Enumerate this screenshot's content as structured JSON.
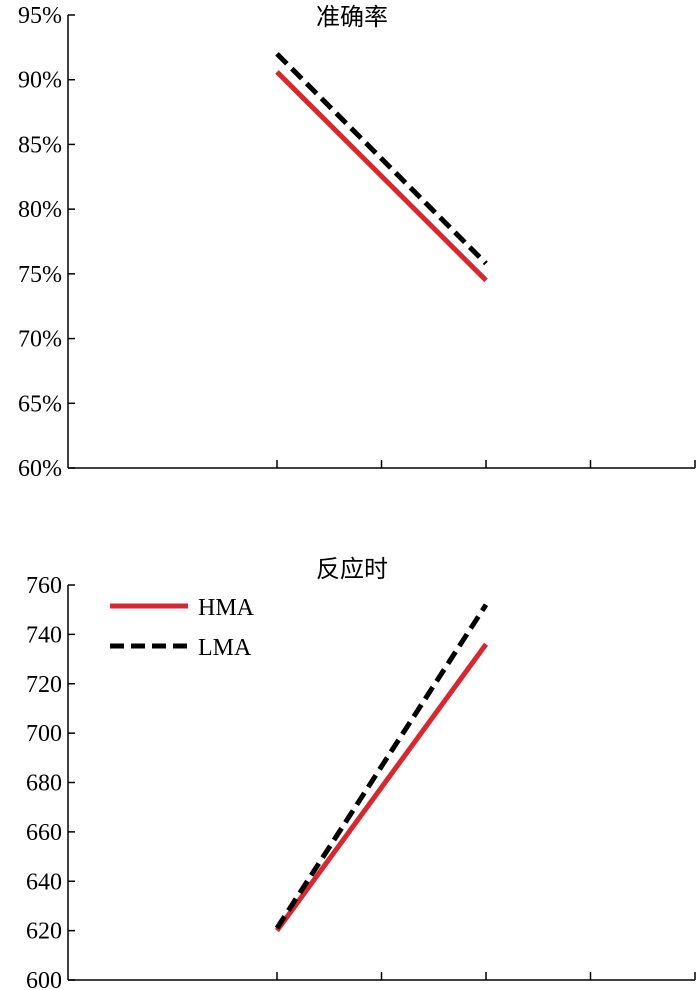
{
  "chart_data": [
    {
      "type": "line",
      "title": "准确率",
      "x": [
        1,
        2
      ],
      "xlim": [
        0,
        3
      ],
      "ylim": [
        60,
        95
      ],
      "yticks": [
        "60%",
        "65%",
        "70%",
        "75%",
        "80%",
        "85%",
        "90%",
        "95%"
      ],
      "ytick_values": [
        60,
        65,
        70,
        75,
        80,
        85,
        90,
        95
      ],
      "series": [
        {
          "name": "HMA",
          "values": [
            90.6,
            74.5
          ],
          "color": "#d7282f",
          "style": "solid"
        },
        {
          "name": "LMA",
          "values": [
            92.0,
            75.8
          ],
          "color": "#000000",
          "style": "dashed"
        }
      ],
      "legend": false
    },
    {
      "type": "line",
      "title": "反应时",
      "x": [
        1,
        2
      ],
      "xlim": [
        0,
        3
      ],
      "ylim": [
        600,
        760
      ],
      "yticks": [
        "600",
        "620",
        "640",
        "660",
        "680",
        "700",
        "720",
        "740",
        "760"
      ],
      "ytick_values": [
        600,
        620,
        640,
        660,
        680,
        700,
        720,
        740,
        760
      ],
      "series": [
        {
          "name": "HMA",
          "values": [
            620,
            736
          ],
          "color": "#d7282f",
          "style": "solid"
        },
        {
          "name": "LMA",
          "values": [
            621,
            752
          ],
          "color": "#000000",
          "style": "dashed"
        }
      ],
      "legend": true,
      "legend_position": "top-left"
    }
  ]
}
